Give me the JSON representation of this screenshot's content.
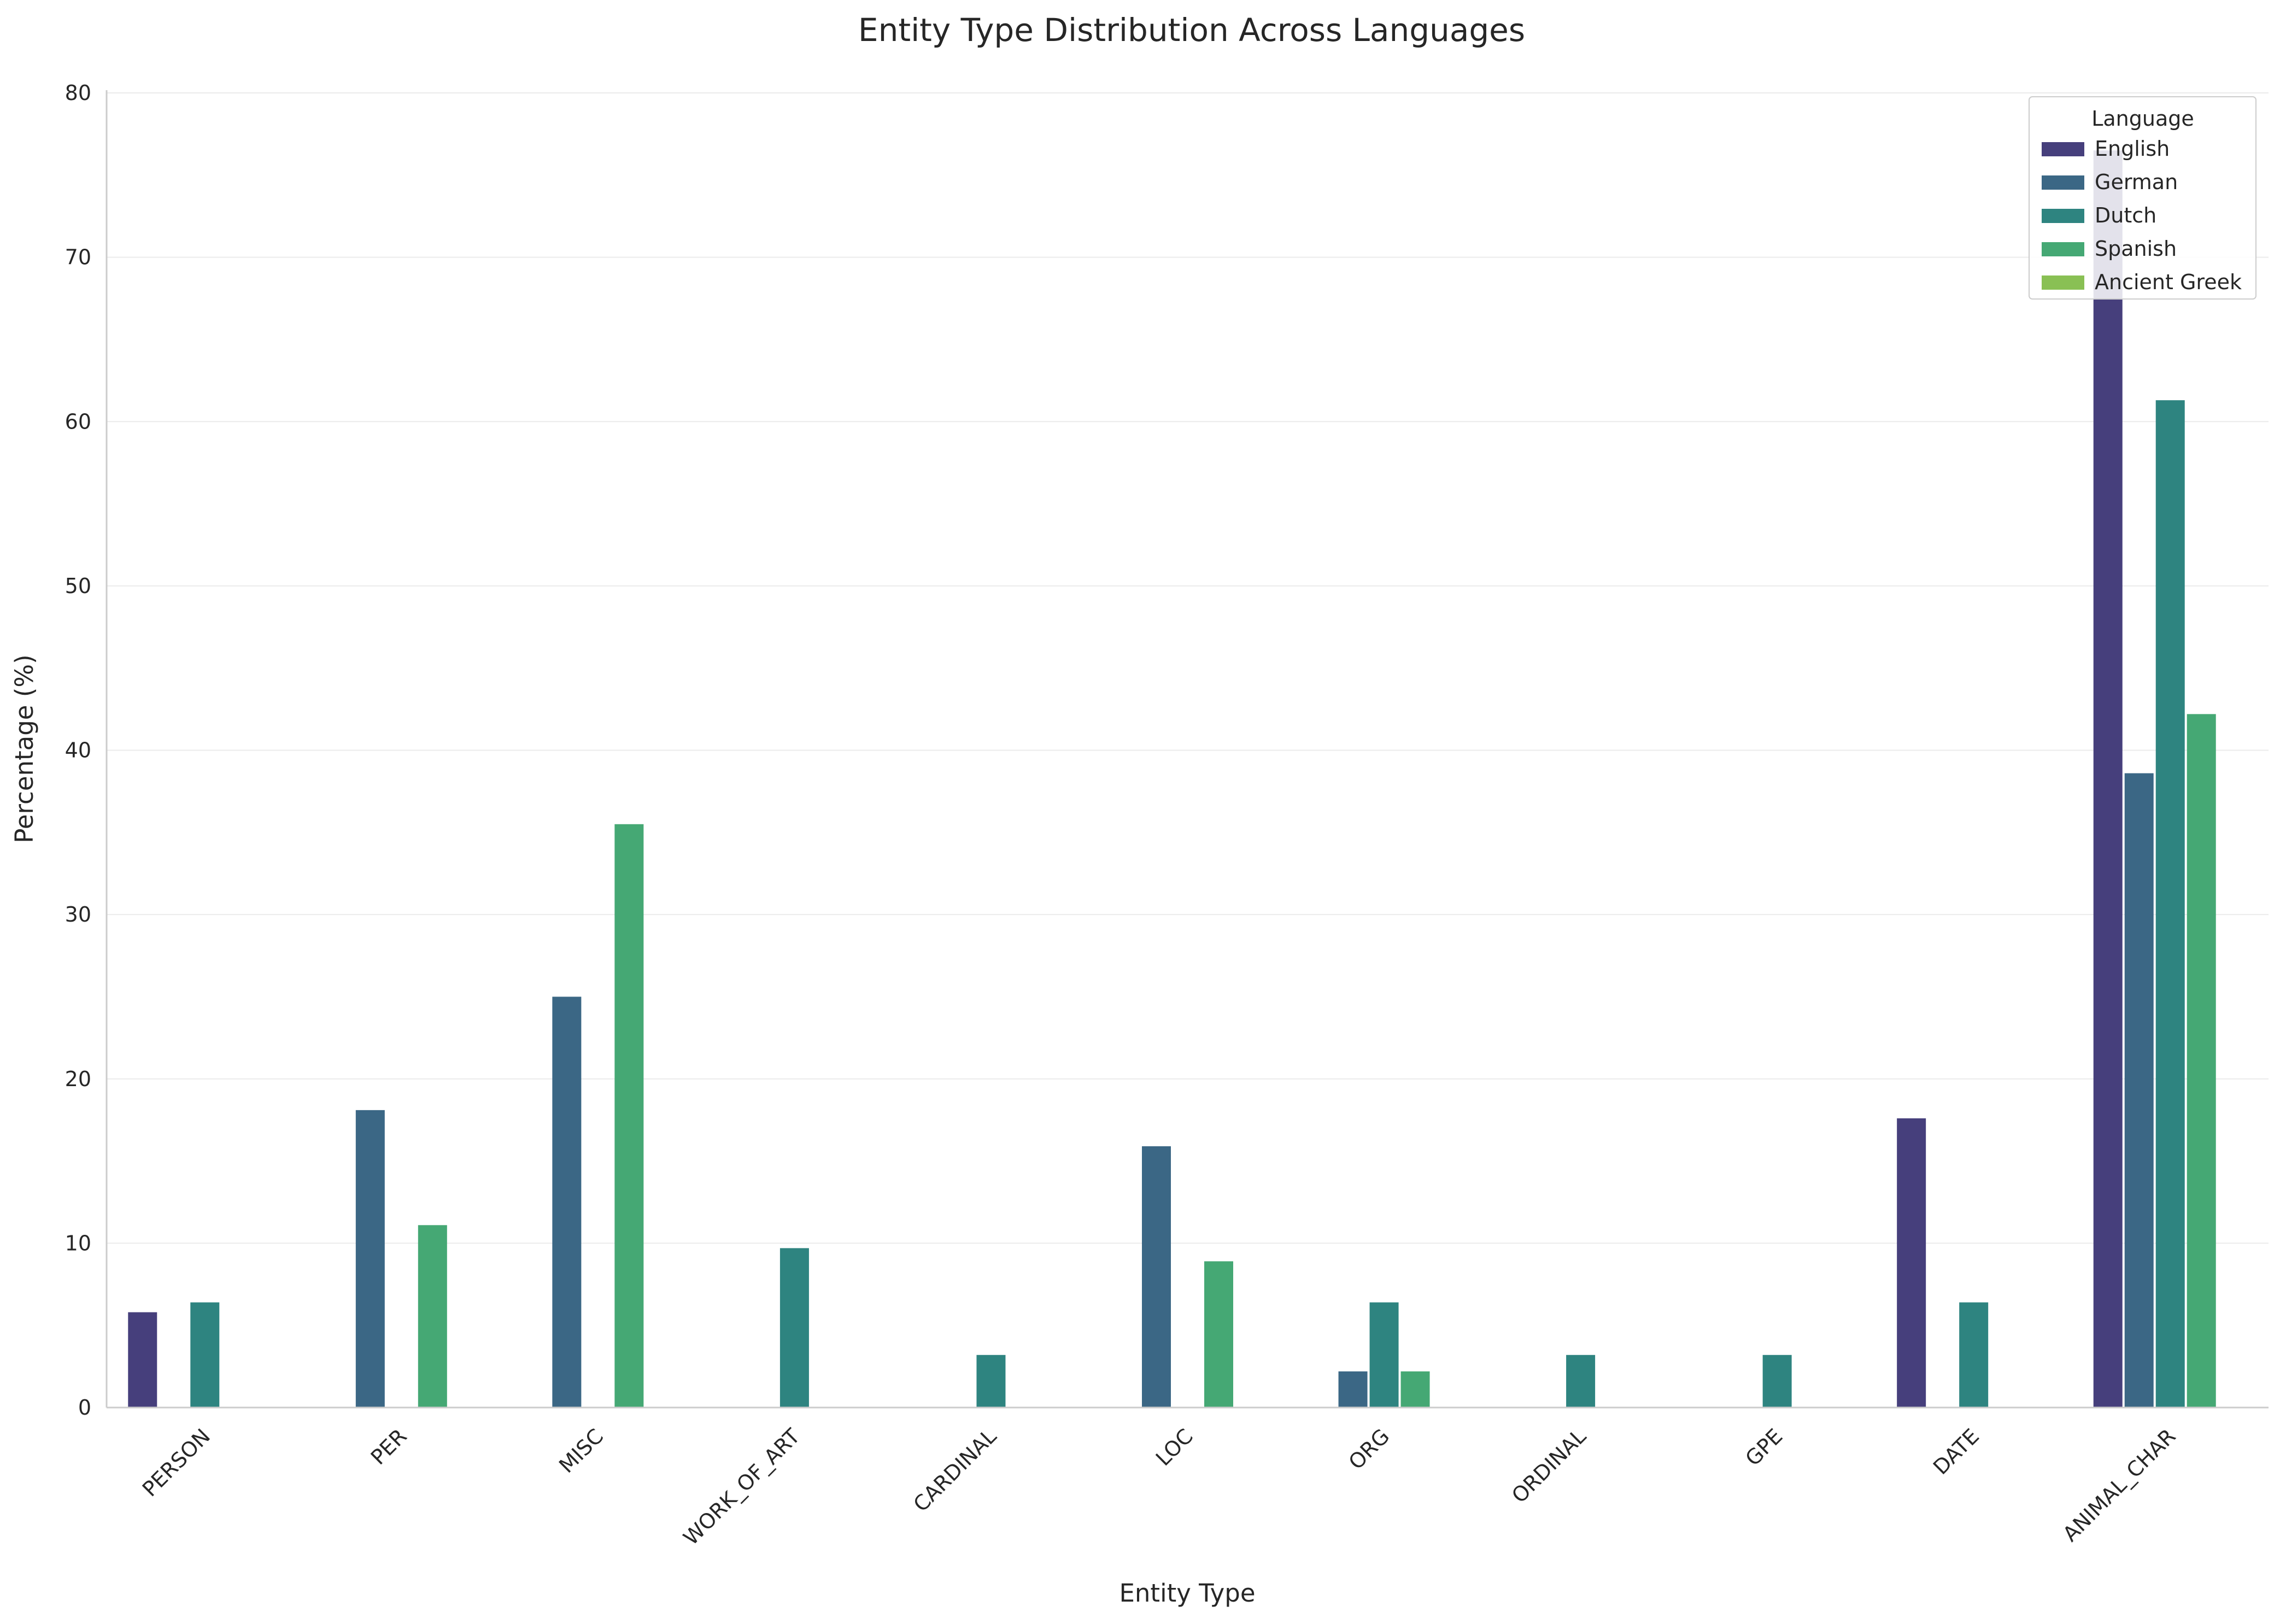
{
  "chart_data": {
    "type": "bar",
    "title": "Entity Type Distribution Across Languages",
    "xlabel": "Entity Type",
    "ylabel": "Percentage (%)",
    "ylim": [
      0,
      80
    ],
    "yticks": [
      0,
      10,
      20,
      30,
      40,
      50,
      60,
      70,
      80
    ],
    "grid": true,
    "legend": {
      "title": "Language",
      "placement": "top-right"
    },
    "categories": [
      "PERSON",
      "PER",
      "MISC",
      "WORK_OF_ART",
      "CARDINAL",
      "LOC",
      "ORG",
      "ORDINAL",
      "GPE",
      "DATE",
      "ANIMAL_CHAR"
    ],
    "series": [
      {
        "name": "English",
        "color": "#463f7c",
        "values": [
          5.8,
          0,
          0,
          0,
          0,
          0,
          0,
          0,
          0,
          17.6,
          76.5
        ]
      },
      {
        "name": "German",
        "color": "#3b6785",
        "values": [
          0,
          18.1,
          25.0,
          0,
          0,
          15.9,
          2.2,
          0,
          0,
          0,
          38.6
        ]
      },
      {
        "name": "Dutch",
        "color": "#2e8480",
        "values": [
          6.4,
          0,
          0,
          9.7,
          3.2,
          0,
          6.4,
          3.2,
          3.2,
          6.4,
          61.3
        ]
      },
      {
        "name": "Spanish",
        "color": "#45a874",
        "values": [
          0,
          11.1,
          35.5,
          0,
          0,
          8.9,
          2.2,
          0,
          0,
          0,
          42.2
        ]
      },
      {
        "name": "Ancient Greek",
        "color": "#89c054",
        "values": [
          0,
          0,
          0,
          0,
          0,
          0,
          0,
          0,
          0,
          0,
          0
        ]
      }
    ]
  }
}
